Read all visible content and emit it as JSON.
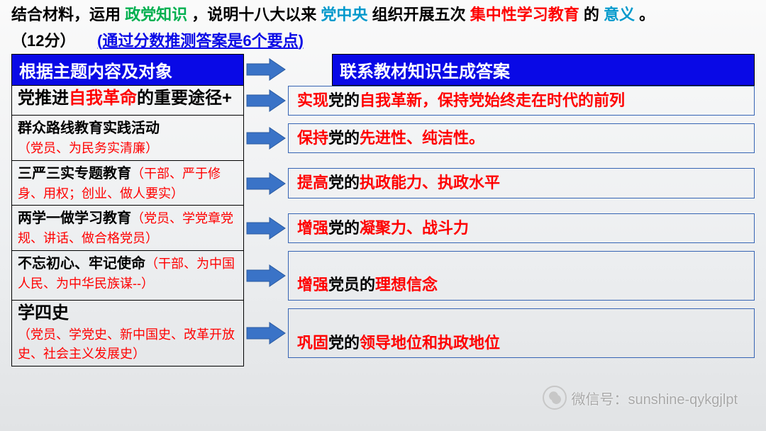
{
  "prompt": {
    "pre": "结合材料，运用",
    "k1": "政党知识",
    "mid1": "，说明十八大以来",
    "k2": "党中央",
    "mid2": "组织开展五次",
    "k3": "集中性学习教育",
    "mid3": "的",
    "k4": "意义",
    "end": "。"
  },
  "score": {
    "label": "（12分）",
    "hint_pre": "(",
    "hint": "通过分数推测答案是6个要点",
    "hint_post": ")"
  },
  "headers": {
    "left": "根据主题内容及对象",
    "right": "联系教材知识生成答案"
  },
  "arrow": {
    "fill": "#3a73c7",
    "stroke": "#2a5aa0"
  },
  "rows": [
    {
      "left_html": "<span class='blk'>党推进</span><span class='red'>自我革命</span><span class='blk'>的重要途径+</span>",
      "right": [
        {
          "pre": "实现",
          "r1": "党的",
          "r2": "自我革新，保持党始终走在时代的前列",
          "tall": false,
          "html": "<span class='red'>实现</span>党的<span class='red'>自我革新，保持党始终走在时代的前列</span>"
        }
      ],
      "big": true
    },
    {
      "left_html": "<span class='blksm'>群众路线教育实践活动</span><br><span class='redsm'>（党员、为民务实清廉）</span>",
      "right": [
        {
          "html": "<span class='red'>保持</span>党的<span class='red'>先进性、纯洁性。</span>"
        }
      ]
    },
    {
      "left_html": "<span class='blksm'>三严三实专题教育</span><span class='redsm'>（干部、严于修身、用权；创业、做人要实）</span>",
      "right": [
        {
          "html": "<span class='red'>提高</span>党的<span class='red'>执政能力、执政水平</span>"
        }
      ]
    },
    {
      "left_html": "<span class='blksm'>两学一做学习教育</span><span class='redsm'>（党员、学党章党规、讲话、做合格党员）</span>",
      "right": [
        {
          "html": "<span class='red'>增强</span>党的<span class='red'>凝聚力、战斗力</span>"
        }
      ]
    },
    {
      "left_html": "<span class='blksm'>不忘初心、牢记使命</span><span class='redsm'>（干部、为中国人民、为中华民族谋--）</span>",
      "right": [
        {
          "html": "<span class='red'>增强</span>党员的<span class='red'>理想信念</span>",
          "tall": true
        }
      ]
    },
    {
      "left_html": "<span class='blk' style='font-size:24px'>学四史</span><br><span class='redsm'>（党员、学党史、新中国史、改革开放史、社会主义发展史）</span>",
      "right": [
        {
          "html": "<span class='red'>巩固</span>党的<span class='red'>领导地位和执政地位</span>",
          "tall": true
        }
      ]
    }
  ],
  "watermark": {
    "label": "微信号：sunshine-qykgjlpt"
  }
}
